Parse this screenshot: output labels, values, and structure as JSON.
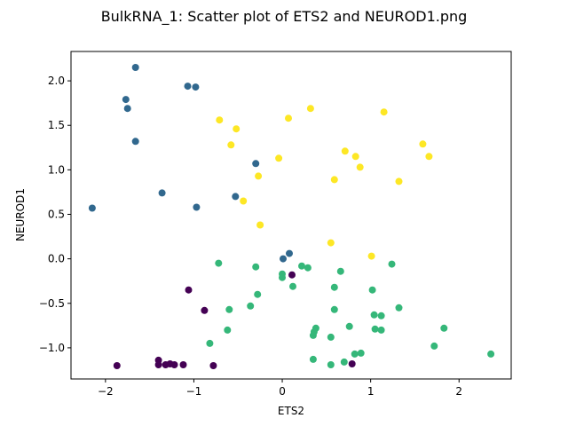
{
  "chart_data": {
    "type": "scatter",
    "title": "BulkRNA_1: Scatter plot of ETS2 and NEUROD1.png",
    "xlabel": "ETS2",
    "ylabel": "NEUROD1",
    "xlim": [
      -2.39,
      2.59
    ],
    "ylim": [
      -1.35,
      2.33
    ],
    "xticks": [
      -2,
      -1,
      0,
      1,
      2
    ],
    "yticks": [
      -1.0,
      -0.5,
      0.0,
      0.5,
      1.0,
      1.5,
      2.0
    ],
    "xtick_labels": [
      "−2",
      "−1",
      "0",
      "1",
      "2"
    ],
    "ytick_labels": [
      "−1.0",
      "−0.5",
      "0.0",
      "0.5",
      "1.0",
      "1.5",
      "2.0"
    ],
    "grid": false,
    "series": [
      {
        "color": "#440154",
        "points": [
          [
            -1.87,
            -1.2
          ],
          [
            -1.4,
            -1.14
          ],
          [
            -1.4,
            -1.19
          ],
          [
            -1.32,
            -1.19
          ],
          [
            -1.27,
            -1.18
          ],
          [
            -1.22,
            -1.19
          ],
          [
            -1.12,
            -1.19
          ],
          [
            -1.06,
            -0.35
          ],
          [
            -0.88,
            -0.58
          ],
          [
            -0.78,
            -1.2
          ],
          [
            0.11,
            -0.18
          ],
          [
            0.79,
            -1.18
          ]
        ]
      },
      {
        "color": "#31688e",
        "points": [
          [
            -2.15,
            0.57
          ],
          [
            -1.77,
            1.79
          ],
          [
            -1.75,
            1.69
          ],
          [
            -1.66,
            2.15
          ],
          [
            -1.66,
            1.32
          ],
          [
            -1.36,
            0.74
          ],
          [
            -1.07,
            1.94
          ],
          [
            -0.98,
            1.93
          ],
          [
            -0.97,
            0.58
          ],
          [
            -0.53,
            0.7
          ],
          [
            -0.3,
            1.07
          ],
          [
            0.01,
            0.0
          ],
          [
            0.08,
            0.06
          ]
        ]
      },
      {
        "color": "#35b779",
        "points": [
          [
            -0.82,
            -0.95
          ],
          [
            -0.72,
            -0.05
          ],
          [
            -0.6,
            -0.57
          ],
          [
            -0.62,
            -0.8
          ],
          [
            -0.36,
            -0.53
          ],
          [
            -0.3,
            -0.09
          ],
          [
            -0.28,
            -0.4
          ],
          [
            0.0,
            -0.17
          ],
          [
            0.0,
            -0.21
          ],
          [
            0.12,
            -0.31
          ],
          [
            0.22,
            -0.08
          ],
          [
            0.29,
            -0.1
          ],
          [
            0.35,
            -0.86
          ],
          [
            0.36,
            -0.82
          ],
          [
            0.38,
            -0.78
          ],
          [
            0.35,
            -1.13
          ],
          [
            0.55,
            -0.88
          ],
          [
            0.59,
            -0.32
          ],
          [
            0.59,
            -0.57
          ],
          [
            0.55,
            -1.19
          ],
          [
            0.66,
            -0.14
          ],
          [
            0.7,
            -1.16
          ],
          [
            0.76,
            -0.76
          ],
          [
            0.82,
            -1.07
          ],
          [
            0.89,
            -1.06
          ],
          [
            1.02,
            -0.35
          ],
          [
            1.04,
            -0.63
          ],
          [
            1.05,
            -0.79
          ],
          [
            1.12,
            -0.64
          ],
          [
            1.12,
            -0.8
          ],
          [
            1.24,
            -0.06
          ],
          [
            1.32,
            -0.55
          ],
          [
            1.72,
            -0.98
          ],
          [
            1.83,
            -0.78
          ],
          [
            2.36,
            -1.07
          ]
        ]
      },
      {
        "color": "#fde725",
        "points": [
          [
            -0.71,
            1.56
          ],
          [
            -0.58,
            1.28
          ],
          [
            -0.52,
            1.46
          ],
          [
            -0.44,
            0.65
          ],
          [
            -0.27,
            0.93
          ],
          [
            -0.25,
            0.38
          ],
          [
            -0.04,
            1.13
          ],
          [
            0.07,
            1.58
          ],
          [
            0.32,
            1.69
          ],
          [
            0.55,
            0.18
          ],
          [
            0.59,
            0.89
          ],
          [
            0.71,
            1.21
          ],
          [
            0.83,
            1.15
          ],
          [
            0.88,
            1.03
          ],
          [
            1.01,
            0.03
          ],
          [
            1.15,
            1.65
          ],
          [
            1.32,
            0.87
          ],
          [
            1.59,
            1.29
          ],
          [
            1.66,
            1.15
          ]
        ]
      }
    ]
  }
}
